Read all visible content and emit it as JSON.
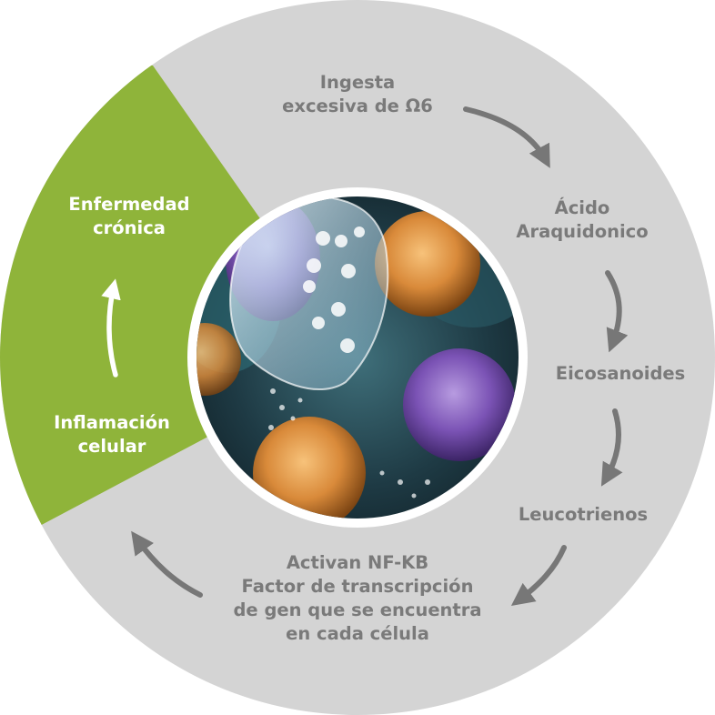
{
  "colors": {
    "ring": "#d4d4d4",
    "segment": "#8fb43a",
    "gray_text": "#7a7a7a",
    "arrow": "#777777",
    "white_text": "#ffffff"
  },
  "center_image": "microscopy of immune cells (purple and orange blood cells)",
  "steps": {
    "ingesta": {
      "line1": "Ingesta",
      "line2": "excesiva de Ω6"
    },
    "acido": {
      "line1": "Ácido",
      "line2": "Araquidonico"
    },
    "eicosanoides": {
      "line1": "Eicosanoides"
    },
    "leucotrienos": {
      "line1": "Leucotrienos"
    },
    "activan": {
      "line1": "Activan NF-KB",
      "line2": "Factor de transcripción",
      "line3": "de gen que se encuentra",
      "line4": "en cada célula"
    },
    "inflamacion": {
      "line1": "Inflamación",
      "line2": "celular"
    },
    "enfermedad": {
      "line1": "Enfermedad",
      "line2": "crónica"
    }
  }
}
